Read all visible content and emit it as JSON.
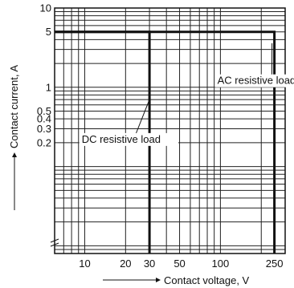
{
  "chart_data": {
    "type": "line",
    "title": "",
    "xlabel": "Contact voltage, V",
    "ylabel": "Contact current, A",
    "x_scale": "log",
    "y_scale": "log",
    "xlim": [
      6,
      300
    ],
    "ylim": [
      0.008,
      10
    ],
    "x_ticks": [
      {
        "value": 10,
        "label": "10"
      },
      {
        "value": 20,
        "label": "20"
      },
      {
        "value": 30,
        "label": "30"
      },
      {
        "value": 50,
        "label": "50"
      },
      {
        "value": 100,
        "label": "100"
      },
      {
        "value": 250,
        "label": "250"
      }
    ],
    "y_ticks": [
      {
        "value": 10,
        "label": "10"
      },
      {
        "value": 5,
        "label": "5"
      },
      {
        "value": 1,
        "label": "1"
      },
      {
        "value": 0.5,
        "label": "0.5"
      },
      {
        "value": 0.4,
        "label": "0.4"
      },
      {
        "value": 0.3,
        "label": "0.3"
      },
      {
        "value": 0.2,
        "label": "0.2"
      }
    ],
    "grid": true,
    "series": [
      {
        "name": "DC resistive load",
        "x": [
          6,
          30,
          30
        ],
        "y": [
          5,
          5,
          0.008
        ]
      },
      {
        "name": "AC resistive load",
        "x": [
          6,
          250,
          250
        ],
        "y": [
          5,
          5,
          0.008
        ]
      }
    ],
    "annotations": [
      {
        "text": "AC resistive load",
        "x": 95,
        "y": 1.1,
        "points_to": [
          240,
          3.6
        ]
      },
      {
        "text": "DC resistive load",
        "x": 9.5,
        "y": 0.2,
        "points_to": [
          30,
          0.7
        ]
      }
    ]
  }
}
